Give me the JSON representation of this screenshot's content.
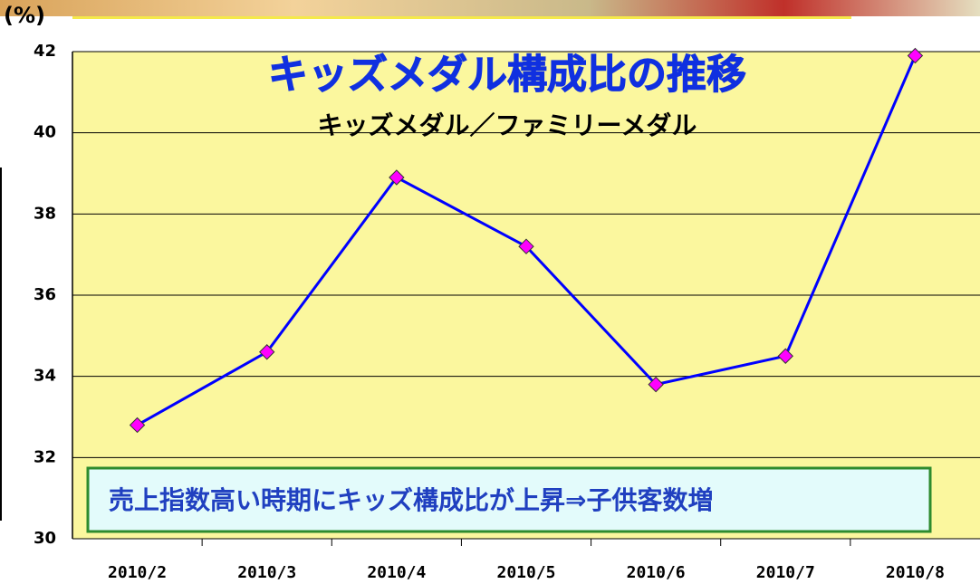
{
  "chart_data": {
    "type": "line",
    "title": "キッズメダル構成比の推移",
    "subtitle": "キッズメダル／ファミリーメダル",
    "y_unit": "(%)",
    "annotation": "売上指数高い時期にキッズ構成比が上昇⇒子供客数増",
    "categories": [
      "2010/2",
      "2010/3",
      "2010/4",
      "2010/5",
      "2010/6",
      "2010/7",
      "2010/8"
    ],
    "series": [
      {
        "color": "#0000ff",
        "marker_color": "#ff00ff",
        "values": [
          32.8,
          34.6,
          38.9,
          37.2,
          33.8,
          34.5,
          41.9
        ]
      }
    ],
    "ylim": [
      30,
      42
    ],
    "yticks": [
      30,
      32,
      34,
      36,
      38,
      40,
      42
    ],
    "grid": true
  }
}
